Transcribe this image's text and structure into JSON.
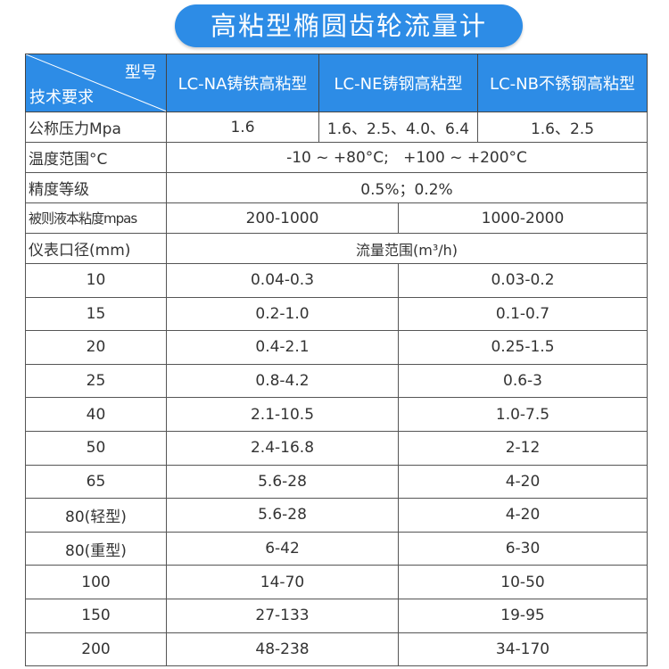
{
  "title": "高粘型椭圆齿轮流量计",
  "header": {
    "diag_top": "型号",
    "diag_bottom": "技术要求",
    "models": [
      "LC-NA铸铁高粘型",
      "LC-NE铸钢高粘型",
      "LC-NB不锈钢高粘型"
    ]
  },
  "specs": {
    "pressure": {
      "label": "公称压力Mpa",
      "values": [
        "1.6",
        "1.6、2.5、4.0、6.4",
        "1.6、2.5"
      ]
    },
    "temperature": {
      "label": "温度范围°C",
      "value": "-10 ~ +80°C;   +100 ~ +200°C"
    },
    "accuracy": {
      "label": "精度等级",
      "value": "0.5%；0.2%"
    },
    "viscosity": {
      "label": "被则液本粘度mpas",
      "values": [
        "200-1000",
        "1000-2000"
      ]
    },
    "caliber": {
      "label": "仪表口径(mm)",
      "value": "流量范围(m³/h)"
    }
  },
  "rows": [
    {
      "size": "10",
      "low": "0.04-0.3",
      "high": "0.03-0.2"
    },
    {
      "size": "15",
      "low": "0.2-1.0",
      "high": "0.1-0.7"
    },
    {
      "size": "20",
      "low": "0.4-2.1",
      "high": "0.25-1.5"
    },
    {
      "size": "25",
      "low": "0.8-4.2",
      "high": "0.6-3"
    },
    {
      "size": "40",
      "low": "2.1-10.5",
      "high": "1.0-7.5"
    },
    {
      "size": "50",
      "low": "2.4-16.8",
      "high": "2-12"
    },
    {
      "size": "65",
      "low": "5.6-28",
      "high": "4-20"
    },
    {
      "size": "80(轻型)",
      "low": "5.6-28",
      "high": "4-20"
    },
    {
      "size": "80(重型)",
      "low": "6-42",
      "high": "6-30"
    },
    {
      "size": "100",
      "low": "14-70",
      "high": "10-50"
    },
    {
      "size": "150",
      "low": "27-133",
      "high": "19-95"
    },
    {
      "size": "200",
      "low": "48-238",
      "high": "34-170"
    }
  ],
  "colors": {
    "header_bg": "#2d8ce6",
    "border": "#555555"
  }
}
